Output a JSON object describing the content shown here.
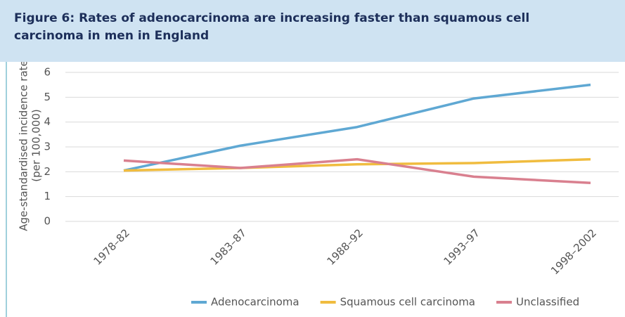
{
  "chart_data": {
    "type": "line",
    "title": "Figure 6: Rates of adenocarcinoma are increasing faster than squamous cell carcinoma in men in England",
    "ylabel": [
      "Age-standardised incidence rate",
      "(per 100,000)"
    ],
    "categories": [
      "1978–82",
      "1983–87",
      "1988–92",
      "1993–97",
      "1998–2002"
    ],
    "series": [
      {
        "name": "Adenocarcinoma",
        "color": "#5fa8d3",
        "values": [
          2.05,
          3.05,
          3.8,
          4.95,
          5.5
        ]
      },
      {
        "name": "Squamous cell carcinoma",
        "color": "#f0bc3f",
        "values": [
          2.05,
          2.15,
          2.3,
          2.35,
          2.5
        ]
      },
      {
        "name": "Unclassified",
        "color": "#d9808f",
        "values": [
          2.45,
          2.15,
          2.5,
          1.8,
          1.55
        ]
      }
    ],
    "ylim": [
      0,
      6
    ],
    "yticks": [
      0,
      1,
      2,
      3,
      4,
      5,
      6
    ],
    "grid": true,
    "legend": "bottom"
  }
}
